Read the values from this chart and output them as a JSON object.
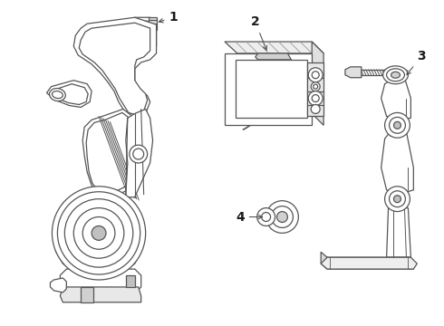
{
  "bg_color": "#ffffff",
  "line_color": "#555555",
  "line_width": 0.9,
  "fig_width": 4.9,
  "fig_height": 3.6,
  "dpi": 100
}
